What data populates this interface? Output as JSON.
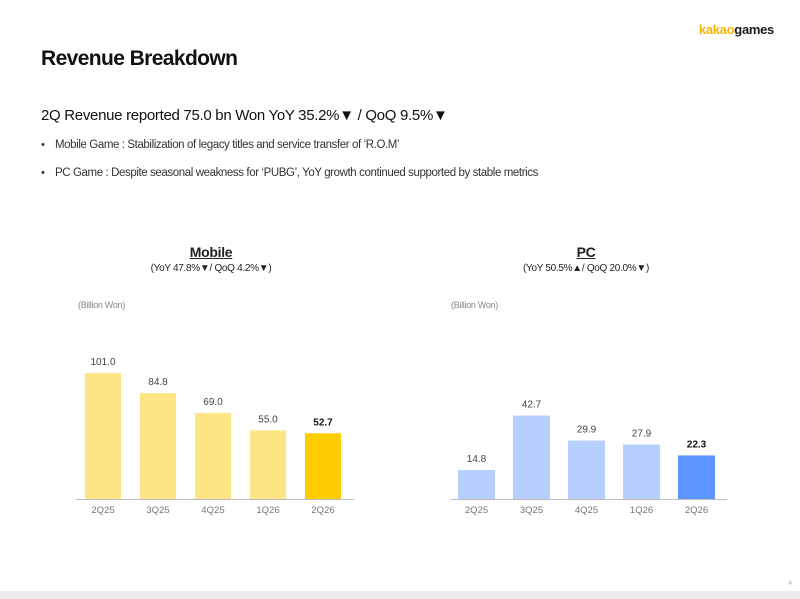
{
  "logo": {
    "part1": "kakao",
    "part2": "games"
  },
  "title": "Revenue Breakdown",
  "headline": "2Q Revenue reported 75.0 bn Won YoY 35.2%▼ / QoQ 9.5%▼",
  "bullets": [
    "Mobile Game : Stabilization of legacy titles and service transfer of ‘R.O.M’",
    "PC Game : Despite seasonal weakness for ‘PUBG’, YoY growth continued supported by stable metrics"
  ],
  "page_number": "4",
  "chart_data": [
    {
      "type": "bar",
      "title": "Mobile",
      "subtitle": "(YoY 47.8%▼/ QoQ 4.2%▼)",
      "unit": "(Billion Won)",
      "categories": [
        "2Q25",
        "3Q25",
        "4Q25",
        "1Q26",
        "2Q26"
      ],
      "values": [
        101.0,
        84.8,
        69.0,
        55.0,
        52.7
      ],
      "value_labels": [
        "101.0",
        "84.8",
        "69.0",
        "55.0",
        "52.7"
      ],
      "colors": [
        "#ffe483",
        "#ffe483",
        "#ffe483",
        "#ffe483",
        "#ffcc00"
      ],
      "highlight_index": 4,
      "ylim": [
        0,
        101.0
      ],
      "grid": false
    },
    {
      "type": "bar",
      "title": "PC",
      "subtitle": "(YoY 50.5%▲/ QoQ 20.0%▼)",
      "unit": "(Billion Won)",
      "categories": [
        "2Q25",
        "3Q25",
        "4Q25",
        "1Q26",
        "2Q26"
      ],
      "values": [
        14.8,
        42.7,
        29.9,
        27.9,
        22.3
      ],
      "value_labels": [
        "14.8",
        "42.7",
        "29.9",
        "27.9",
        "22.3"
      ],
      "colors": [
        "#b6cfff",
        "#b6cfff",
        "#b6cfff",
        "#b6cfff",
        "#5d95ff"
      ],
      "highlight_index": 4,
      "ylim": [
        0,
        64.5
      ],
      "grid": false
    }
  ]
}
